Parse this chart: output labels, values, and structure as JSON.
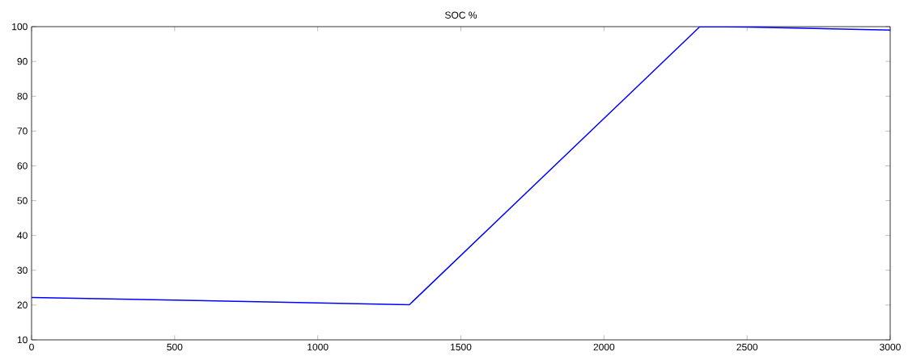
{
  "chart_data": {
    "type": "line",
    "title": "SOC %",
    "x": [
      0,
      1320,
      2335,
      2500,
      3000
    ],
    "series": [
      {
        "color": "#0000ff",
        "values": [
          22.2,
          20.1,
          100,
          99.9,
          99.0
        ]
      }
    ],
    "xlim": [
      0,
      3000
    ],
    "ylim": [
      10,
      100
    ],
    "xticks": [
      0,
      500,
      1000,
      1500,
      2000,
      2500,
      3000
    ],
    "yticks": [
      10,
      20,
      30,
      40,
      50,
      60,
      70,
      80,
      90,
      100
    ],
    "grid": false,
    "marker": "none",
    "line_style": "solid"
  }
}
